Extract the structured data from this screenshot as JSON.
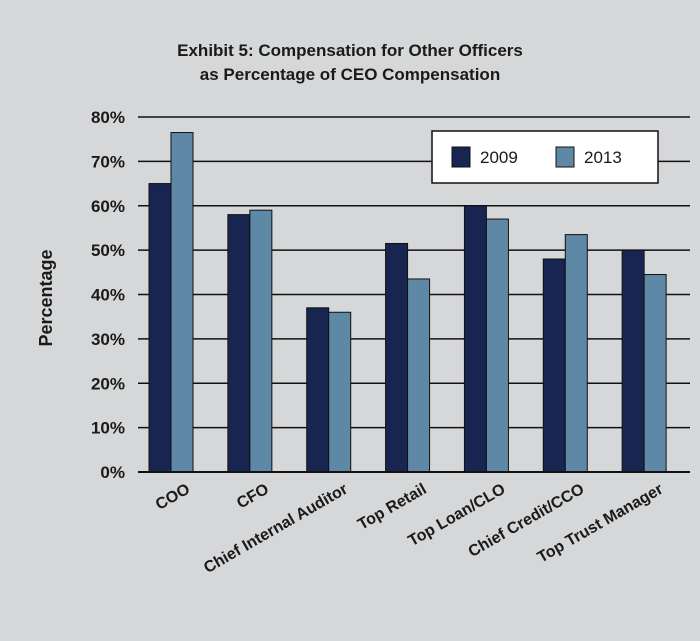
{
  "chart_data": {
    "type": "bar",
    "title": [
      "Exhibit 5: Compensation for Other Officers",
      "as Percentage of CEO Compensation"
    ],
    "ylabel": "Percentage",
    "xlabel": "",
    "ylim": [
      0,
      80
    ],
    "yticks": [
      0,
      10,
      20,
      30,
      40,
      50,
      60,
      70,
      80
    ],
    "ytick_labels": [
      "0%",
      "10%",
      "20%",
      "30%",
      "40%",
      "50%",
      "60%",
      "70%",
      "80%"
    ],
    "grid": true,
    "legend": "top-right",
    "categories": [
      "COO",
      "CFO",
      "Chief Internal Auditor",
      "Top Retail",
      "Top Loan/CLO",
      "Chief Credit/CCO",
      "Top Trust Manager"
    ],
    "series": [
      {
        "name": "2009",
        "color": "#172550",
        "values": [
          65,
          58,
          37,
          51.5,
          60,
          48,
          50
        ]
      },
      {
        "name": "2013",
        "color": "#5f88a6",
        "values": [
          76.5,
          59,
          36,
          43.5,
          57,
          53.5,
          44.5
        ]
      }
    ]
  }
}
